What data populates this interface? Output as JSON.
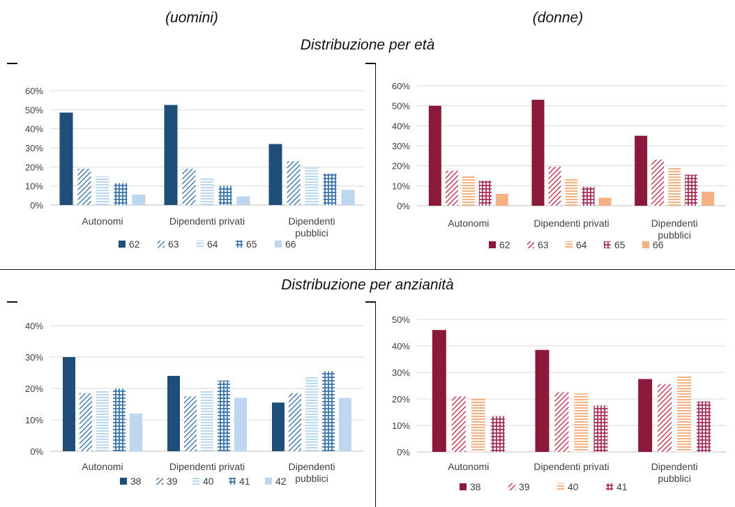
{
  "headers": {
    "left": "(uomini)",
    "right": "(donne)"
  },
  "sections": {
    "age": "Distribuzione per età",
    "seniority": "Distribuzione per anzianità"
  },
  "chart_data": [
    {
      "id": "age-men",
      "type": "bar",
      "categories": [
        "Autonomi",
        "Dipendenti privati",
        "Dipendenti pubblici"
      ],
      "ylim": [
        0,
        60
      ],
      "yticks": [
        0,
        10,
        20,
        30,
        40,
        50,
        60
      ],
      "ytick_suffix": "%",
      "grid": true,
      "legend": "bottom",
      "series": [
        {
          "name": "62",
          "values": [
            48.5,
            52.5,
            32
          ],
          "color": "#1f4e79",
          "pattern": "solid"
        },
        {
          "name": "63",
          "values": [
            19,
            19,
            23
          ],
          "color": "#2e6aa6",
          "pattern": "diag"
        },
        {
          "name": "64",
          "values": [
            15,
            14,
            20
          ],
          "color": "#bdd7ee",
          "pattern": "hlines"
        },
        {
          "name": "65",
          "values": [
            11.5,
            10,
            16.5
          ],
          "color": "#2e6aa6",
          "pattern": "grid"
        },
        {
          "name": "66",
          "values": [
            5.5,
            4.5,
            8
          ],
          "color": "#bdd7ee",
          "pattern": "solid"
        }
      ]
    },
    {
      "id": "age-women",
      "type": "bar",
      "categories": [
        "Autonomi",
        "Dipendenti privati",
        "Dipendenti pubblici"
      ],
      "ylim": [
        0,
        60
      ],
      "yticks": [
        0,
        10,
        20,
        30,
        40,
        50,
        60
      ],
      "ytick_suffix": "%",
      "grid": true,
      "legend": "bottom",
      "series": [
        {
          "name": "62",
          "values": [
            50,
            53,
            35
          ],
          "color": "#8b1a3a",
          "pattern": "solid"
        },
        {
          "name": "63",
          "values": [
            17.5,
            19.5,
            23
          ],
          "color": "#c0203f",
          "pattern": "diag"
        },
        {
          "name": "64",
          "values": [
            15,
            14,
            19
          ],
          "color": "#f4b183",
          "pattern": "hlines"
        },
        {
          "name": "65",
          "values": [
            12.5,
            9.5,
            15.5
          ],
          "color": "#a0204a",
          "pattern": "grid"
        },
        {
          "name": "66",
          "values": [
            6,
            4,
            7
          ],
          "color": "#f4b183",
          "pattern": "solid"
        }
      ]
    },
    {
      "id": "seniority-men",
      "type": "bar",
      "categories": [
        "Autonomi",
        "Dipendenti privati",
        "Dipendenti pubblici"
      ],
      "ylim": [
        0,
        40
      ],
      "yticks": [
        0,
        10,
        20,
        30,
        40
      ],
      "ytick_suffix": "%",
      "grid": true,
      "legend": "bottom",
      "series": [
        {
          "name": "38",
          "values": [
            30,
            24,
            15.5
          ],
          "color": "#1f4e79",
          "pattern": "solid"
        },
        {
          "name": "39",
          "values": [
            18.5,
            17.5,
            18.5
          ],
          "color": "#2e6aa6",
          "pattern": "diag"
        },
        {
          "name": "40",
          "values": [
            19.5,
            19.5,
            23.5
          ],
          "color": "#bdd7ee",
          "pattern": "hlines"
        },
        {
          "name": "41",
          "values": [
            20,
            22.5,
            25.5
          ],
          "color": "#2e6aa6",
          "pattern": "grid"
        },
        {
          "name": "42",
          "values": [
            12,
            17,
            17
          ],
          "color": "#bdd7ee",
          "pattern": "solid"
        }
      ]
    },
    {
      "id": "seniority-women",
      "type": "bar",
      "categories": [
        "Autonomi",
        "Dipendenti privati",
        "Dipendenti pubblici"
      ],
      "ylim": [
        0,
        50
      ],
      "yticks": [
        0,
        10,
        20,
        30,
        40,
        50
      ],
      "ytick_suffix": "%",
      "grid": true,
      "legend": "bottom",
      "series": [
        {
          "name": "38",
          "values": [
            46,
            38.5,
            27.5
          ],
          "color": "#8b1a3a",
          "pattern": "solid"
        },
        {
          "name": "39",
          "values": [
            21,
            22.5,
            25.5
          ],
          "color": "#c0203f",
          "pattern": "diag"
        },
        {
          "name": "40",
          "values": [
            20,
            22,
            28.5
          ],
          "color": "#f4b183",
          "pattern": "hlines"
        },
        {
          "name": "41",
          "values": [
            13.5,
            17.5,
            19
          ],
          "color": "#a0204a",
          "pattern": "grid"
        }
      ]
    }
  ]
}
